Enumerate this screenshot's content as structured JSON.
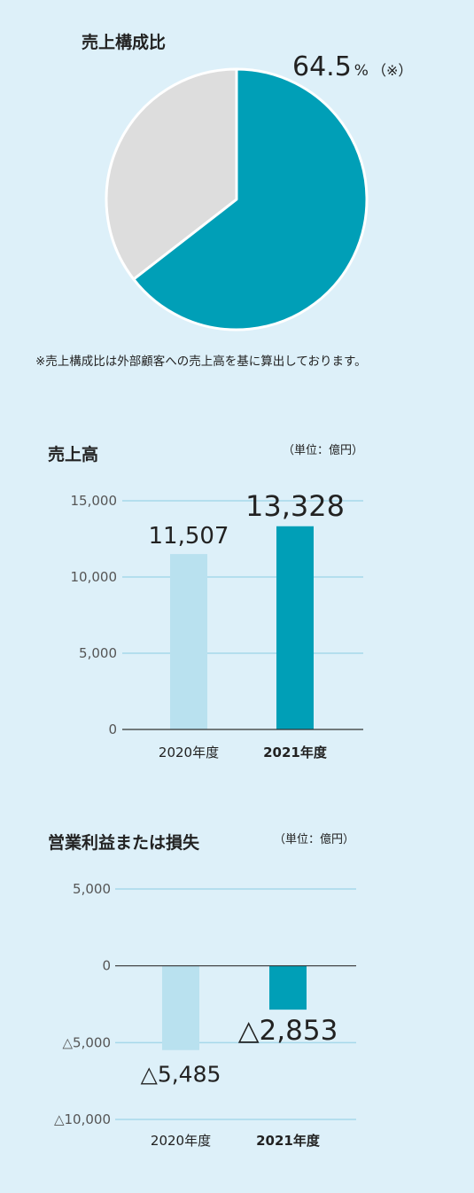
{
  "colors": {
    "background": "#ddf0f9",
    "accent": "#009fb7",
    "light_bar": "#b9e1ef",
    "pie_rest": "#dddddd",
    "grid": "#a6d8ea"
  },
  "chart_data": [
    {
      "type": "pie",
      "title": "売上構成比",
      "slices": [
        {
          "label": "",
          "value": 64.5
        },
        {
          "label": "",
          "value": 35.5
        }
      ],
      "callout_value": "64.5",
      "callout_unit": "%",
      "callout_mark": "（※）",
      "footnote": "※売上構成比は外部顧客への売上高を基に算出しております。"
    },
    {
      "type": "bar",
      "title": "売上高",
      "unit_label": "（単位：億円）",
      "categories": [
        "2020年度",
        "2021年度"
      ],
      "values": [
        11507,
        13328
      ],
      "value_labels": [
        "11,507",
        "13,328"
      ],
      "ylim": [
        0,
        15000
      ],
      "yticks": [
        0,
        5000,
        10000,
        15000
      ],
      "ytick_labels": [
        "0",
        "5,000",
        "10,000",
        "15,000"
      ],
      "grid": true
    },
    {
      "type": "bar",
      "title": "営業利益または損失",
      "unit_label": "（単位：億円）",
      "categories": [
        "2020年度",
        "2021年度"
      ],
      "values": [
        -5485,
        -2853
      ],
      "value_labels": [
        "△5,485",
        "△2,853"
      ],
      "ylim": [
        -10000,
        5000
      ],
      "yticks": [
        -10000,
        -5000,
        0,
        5000
      ],
      "ytick_labels": [
        "△10,000",
        "△5,000",
        "0",
        "5,000"
      ],
      "grid": true
    }
  ]
}
